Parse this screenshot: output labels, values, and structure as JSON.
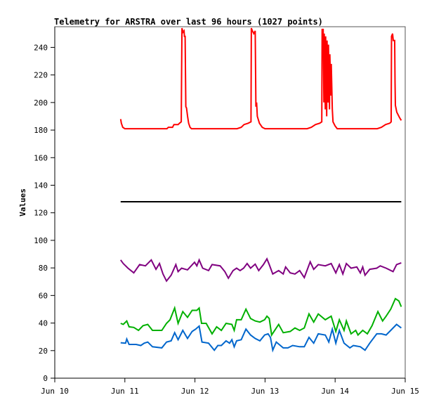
{
  "chart_data": {
    "type": "line",
    "title": "Telemetry for ARSTRA over last 96 hours (1027 points)",
    "xlabel": "",
    "ylabel": "Values",
    "x_unit": "days since Jun 10 00:00",
    "xlim": [
      0,
      5
    ],
    "ylim": [
      0,
      255
    ],
    "grid": false,
    "x_ticks": [
      {
        "value": 0,
        "label": "Jun 10"
      },
      {
        "value": 1,
        "label": "Jun 11"
      },
      {
        "value": 2,
        "label": "Jun 12"
      },
      {
        "value": 3,
        "label": "Jun 13"
      },
      {
        "value": 4,
        "label": "Jun 14"
      },
      {
        "value": 5,
        "label": "Jun 15"
      }
    ],
    "y_ticks": [
      {
        "value": 0,
        "label": "0"
      },
      {
        "value": 20,
        "label": "20"
      },
      {
        "value": 40,
        "label": "40"
      },
      {
        "value": 60,
        "label": "60"
      },
      {
        "value": 80,
        "label": "80"
      },
      {
        "value": 100,
        "label": "100"
      },
      {
        "value": 120,
        "label": "120"
      },
      {
        "value": 140,
        "label": "140"
      },
      {
        "value": 160,
        "label": "160"
      },
      {
        "value": 180,
        "label": "180"
      },
      {
        "value": 200,
        "label": "200"
      },
      {
        "value": 220,
        "label": "220"
      },
      {
        "value": 240,
        "label": "240"
      }
    ],
    "series": [
      {
        "name": "red",
        "color": "#ff0000",
        "points": [
          [
            0.94,
            188
          ],
          [
            0.95,
            185
          ],
          [
            0.97,
            182
          ],
          [
            1.0,
            181
          ],
          [
            1.6,
            181
          ],
          [
            1.62,
            182
          ],
          [
            1.68,
            182
          ],
          [
            1.7,
            184
          ],
          [
            1.76,
            184
          ],
          [
            1.78,
            185
          ],
          [
            1.805,
            186
          ],
          [
            1.81,
            222
          ],
          [
            1.815,
            254
          ],
          [
            1.83,
            251
          ],
          [
            1.845,
            252
          ],
          [
            1.85,
            248
          ],
          [
            1.86,
            248
          ],
          [
            1.865,
            222
          ],
          [
            1.87,
            197
          ],
          [
            1.88,
            196
          ],
          [
            1.895,
            190
          ],
          [
            1.91,
            185
          ],
          [
            1.93,
            182
          ],
          [
            1.95,
            181
          ],
          [
            2.6,
            181
          ],
          [
            2.66,
            182
          ],
          [
            2.7,
            184
          ],
          [
            2.76,
            185
          ],
          [
            2.8,
            186
          ],
          [
            2.805,
            254
          ],
          [
            2.82,
            252
          ],
          [
            2.84,
            250
          ],
          [
            2.86,
            252
          ],
          [
            2.87,
            197
          ],
          [
            2.88,
            200
          ],
          [
            2.89,
            190
          ],
          [
            2.92,
            185
          ],
          [
            2.96,
            182
          ],
          [
            3.0,
            181
          ],
          [
            3.6,
            181
          ],
          [
            3.66,
            182
          ],
          [
            3.72,
            184
          ],
          [
            3.78,
            185
          ],
          [
            3.81,
            186
          ],
          [
            3.815,
            253
          ],
          [
            3.83,
            253
          ],
          [
            3.84,
            200
          ],
          [
            3.845,
            250
          ],
          [
            3.86,
            195
          ],
          [
            3.865,
            248
          ],
          [
            3.88,
            190
          ],
          [
            3.885,
            245
          ],
          [
            3.9,
            200
          ],
          [
            3.905,
            242
          ],
          [
            3.92,
            195
          ],
          [
            3.925,
            235
          ],
          [
            3.94,
            205
          ],
          [
            3.945,
            228
          ],
          [
            3.96,
            195
          ],
          [
            3.97,
            186
          ],
          [
            4.0,
            183
          ],
          [
            4.03,
            181
          ],
          [
            4.6,
            181
          ],
          [
            4.66,
            182
          ],
          [
            4.72,
            184
          ],
          [
            4.78,
            185
          ],
          [
            4.8,
            186
          ],
          [
            4.805,
            248
          ],
          [
            4.82,
            250
          ],
          [
            4.83,
            245
          ],
          [
            4.85,
            245
          ],
          [
            4.855,
            215
          ],
          [
            4.86,
            198
          ],
          [
            4.88,
            193
          ],
          [
            4.9,
            191
          ],
          [
            4.92,
            189
          ],
          [
            4.944,
            187
          ]
        ]
      },
      {
        "name": "black",
        "color": "#000000",
        "points": [
          [
            0.94,
            128
          ],
          [
            4.944,
            128
          ]
        ]
      },
      {
        "name": "purple",
        "color": "#800080",
        "points": [
          [
            0.94,
            85.8
          ],
          [
            0.977,
            83.2
          ],
          [
            1.044,
            79.8
          ],
          [
            1.127,
            76.4
          ],
          [
            1.21,
            82.4
          ],
          [
            1.294,
            81.5
          ],
          [
            1.377,
            85.8
          ],
          [
            1.444,
            79.0
          ],
          [
            1.494,
            83.2
          ],
          [
            1.544,
            75.6
          ],
          [
            1.594,
            70.5
          ],
          [
            1.66,
            74.7
          ],
          [
            1.727,
            82.4
          ],
          [
            1.76,
            77.3
          ],
          [
            1.81,
            79.8
          ],
          [
            1.894,
            78.6
          ],
          [
            1.994,
            84.1
          ],
          [
            2.027,
            81.5
          ],
          [
            2.06,
            85.8
          ],
          [
            2.11,
            79.8
          ],
          [
            2.194,
            78.1
          ],
          [
            2.244,
            82.4
          ],
          [
            2.36,
            81.5
          ],
          [
            2.427,
            77.3
          ],
          [
            2.477,
            72.5
          ],
          [
            2.544,
            78.1
          ],
          [
            2.594,
            79.8
          ],
          [
            2.644,
            78.1
          ],
          [
            2.694,
            79.8
          ],
          [
            2.744,
            83.2
          ],
          [
            2.794,
            79.8
          ],
          [
            2.86,
            82.7
          ],
          [
            2.91,
            78.1
          ],
          [
            2.977,
            82.4
          ],
          [
            3.027,
            86.6
          ],
          [
            3.06,
            82.4
          ],
          [
            3.11,
            75.6
          ],
          [
            3.194,
            78.1
          ],
          [
            3.26,
            75.6
          ],
          [
            3.294,
            80.7
          ],
          [
            3.36,
            76.4
          ],
          [
            3.427,
            75.6
          ],
          [
            3.494,
            78.1
          ],
          [
            3.56,
            73.0
          ],
          [
            3.644,
            84.4
          ],
          [
            3.694,
            79.0
          ],
          [
            3.76,
            82.4
          ],
          [
            3.86,
            81.5
          ],
          [
            3.944,
            83.2
          ],
          [
            4.01,
            76.4
          ],
          [
            4.06,
            82.4
          ],
          [
            4.11,
            75.6
          ],
          [
            4.16,
            83.2
          ],
          [
            4.227,
            79.8
          ],
          [
            4.31,
            80.7
          ],
          [
            4.36,
            76.4
          ],
          [
            4.394,
            80.7
          ],
          [
            4.427,
            74.7
          ],
          [
            4.494,
            79.0
          ],
          [
            4.594,
            79.8
          ],
          [
            4.644,
            81.5
          ],
          [
            4.727,
            79.8
          ],
          [
            4.827,
            77.3
          ],
          [
            4.877,
            82.4
          ],
          [
            4.944,
            83.7
          ]
        ]
      },
      {
        "name": "green",
        "color": "#00b000",
        "points": [
          [
            0.94,
            39.8
          ],
          [
            0.977,
            39.0
          ],
          [
            1.027,
            41.5
          ],
          [
            1.06,
            37.3
          ],
          [
            1.127,
            36.8
          ],
          [
            1.194,
            34.7
          ],
          [
            1.26,
            38.1
          ],
          [
            1.327,
            39.0
          ],
          [
            1.394,
            34.7
          ],
          [
            1.527,
            34.7
          ],
          [
            1.594,
            39.8
          ],
          [
            1.644,
            42.4
          ],
          [
            1.71,
            50.9
          ],
          [
            1.76,
            39.8
          ],
          [
            1.827,
            48.3
          ],
          [
            1.894,
            44.1
          ],
          [
            1.96,
            49.2
          ],
          [
            2.027,
            49.2
          ],
          [
            2.06,
            50.9
          ],
          [
            2.094,
            39.8
          ],
          [
            2.16,
            39.8
          ],
          [
            2.244,
            32.2
          ],
          [
            2.31,
            37.3
          ],
          [
            2.377,
            34.7
          ],
          [
            2.444,
            39.8
          ],
          [
            2.527,
            39.0
          ],
          [
            2.56,
            34.7
          ],
          [
            2.594,
            42.4
          ],
          [
            2.66,
            42.4
          ],
          [
            2.727,
            50.1
          ],
          [
            2.794,
            43.3
          ],
          [
            2.86,
            41.5
          ],
          [
            2.927,
            40.7
          ],
          [
            2.994,
            42.4
          ],
          [
            3.027,
            45.0
          ],
          [
            3.06,
            43.3
          ],
          [
            3.094,
            31.3
          ],
          [
            3.194,
            39.0
          ],
          [
            3.26,
            33.0
          ],
          [
            3.36,
            33.9
          ],
          [
            3.427,
            36.4
          ],
          [
            3.494,
            34.7
          ],
          [
            3.56,
            36.4
          ],
          [
            3.627,
            46.6
          ],
          [
            3.694,
            40.7
          ],
          [
            3.76,
            46.6
          ],
          [
            3.86,
            42.4
          ],
          [
            3.944,
            45.0
          ],
          [
            4.01,
            33.9
          ],
          [
            4.06,
            42.4
          ],
          [
            4.127,
            34.7
          ],
          [
            4.16,
            41.5
          ],
          [
            4.227,
            32.2
          ],
          [
            4.294,
            34.7
          ],
          [
            4.327,
            31.3
          ],
          [
            4.394,
            34.7
          ],
          [
            4.46,
            32.2
          ],
          [
            4.527,
            38.1
          ],
          [
            4.61,
            48.3
          ],
          [
            4.677,
            41.5
          ],
          [
            4.727,
            45.0
          ],
          [
            4.794,
            50.1
          ],
          [
            4.86,
            57.7
          ],
          [
            4.91,
            56.0
          ],
          [
            4.944,
            51.8
          ]
        ]
      },
      {
        "name": "blue",
        "color": "#0066cc",
        "points": [
          [
            0.94,
            25.7
          ],
          [
            1.01,
            25.4
          ],
          [
            1.027,
            28.4
          ],
          [
            1.06,
            24.5
          ],
          [
            1.16,
            24.5
          ],
          [
            1.227,
            23.7
          ],
          [
            1.277,
            25.4
          ],
          [
            1.327,
            26.2
          ],
          [
            1.394,
            22.8
          ],
          [
            1.527,
            22.0
          ],
          [
            1.594,
            26.2
          ],
          [
            1.66,
            27.1
          ],
          [
            1.71,
            33.0
          ],
          [
            1.76,
            27.9
          ],
          [
            1.827,
            34.7
          ],
          [
            1.894,
            28.8
          ],
          [
            1.96,
            33.9
          ],
          [
            2.01,
            35.6
          ],
          [
            2.06,
            37.8
          ],
          [
            2.1,
            26.2
          ],
          [
            2.194,
            25.4
          ],
          [
            2.277,
            20.3
          ],
          [
            2.327,
            23.7
          ],
          [
            2.377,
            23.7
          ],
          [
            2.444,
            27.1
          ],
          [
            2.494,
            25.4
          ],
          [
            2.527,
            27.9
          ],
          [
            2.56,
            22.8
          ],
          [
            2.594,
            27.1
          ],
          [
            2.66,
            27.9
          ],
          [
            2.727,
            35.6
          ],
          [
            2.794,
            31.3
          ],
          [
            2.86,
            28.8
          ],
          [
            2.927,
            27.1
          ],
          [
            2.994,
            31.3
          ],
          [
            3.044,
            32.2
          ],
          [
            3.077,
            29.6
          ],
          [
            3.11,
            20.3
          ],
          [
            3.16,
            26.2
          ],
          [
            3.26,
            22.0
          ],
          [
            3.327,
            22.0
          ],
          [
            3.394,
            23.7
          ],
          [
            3.494,
            22.8
          ],
          [
            3.56,
            22.8
          ],
          [
            3.627,
            29.6
          ],
          [
            3.694,
            25.4
          ],
          [
            3.76,
            32.2
          ],
          [
            3.86,
            31.3
          ],
          [
            3.91,
            26.2
          ],
          [
            3.96,
            35.6
          ],
          [
            4.01,
            25.4
          ],
          [
            4.06,
            34.7
          ],
          [
            4.127,
            25.4
          ],
          [
            4.21,
            22.0
          ],
          [
            4.26,
            23.7
          ],
          [
            4.36,
            22.8
          ],
          [
            4.427,
            20.3
          ],
          [
            4.494,
            25.4
          ],
          [
            4.594,
            32.2
          ],
          [
            4.66,
            32.2
          ],
          [
            4.727,
            31.3
          ],
          [
            4.794,
            34.7
          ],
          [
            4.877,
            39.0
          ],
          [
            4.944,
            36.4
          ]
        ]
      }
    ]
  }
}
